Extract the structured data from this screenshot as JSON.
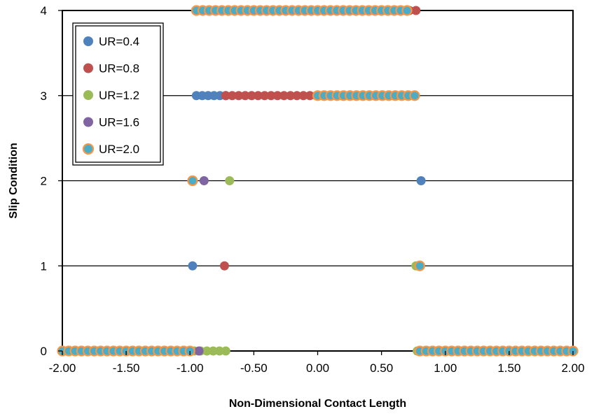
{
  "chart_data": {
    "type": "scatter",
    "xlabel": "Non-Dimensional Contact Length",
    "ylabel": "Slip Condition",
    "xlim": [
      -2.0,
      2.0
    ],
    "ylim": [
      0,
      4
    ],
    "xticks": [
      "-2.00",
      "-1.50",
      "-1.00",
      "-0.50",
      "0.00",
      "0.50",
      "1.00",
      "1.50",
      "2.00"
    ],
    "yticks": [
      "0",
      "1",
      "2",
      "3",
      "4"
    ],
    "grid": "horizontal",
    "legend_position": "top-left",
    "series": [
      {
        "name": "UR=0.4",
        "fill": "#4f81bd",
        "stroke": "#4f81bd",
        "points": [
          {
            "y": 0,
            "ranges": [
              [
                -2.0,
                -1.0
              ],
              [
                0.8,
                2.0
              ]
            ]
          },
          {
            "y": 1,
            "x": [
              -0.98
            ]
          },
          {
            "y": 2,
            "x": [
              0.81
            ]
          },
          {
            "y": 3,
            "ranges": [
              [
                -0.95,
                -0.72
              ]
            ]
          },
          {
            "y": 4,
            "ranges": [
              [
                -0.95,
                -0.05
              ]
            ]
          }
        ]
      },
      {
        "name": "UR=0.8",
        "fill": "#c0504d",
        "stroke": "#c0504d",
        "points": [
          {
            "y": 0,
            "ranges": [
              [
                -2.0,
                -1.0
              ],
              [
                0.8,
                2.0
              ]
            ]
          },
          {
            "y": 1,
            "x": [
              -0.73
            ]
          },
          {
            "y": 3,
            "ranges": [
              [
                -0.72,
                0.75
              ]
            ]
          },
          {
            "y": 4,
            "ranges": [
              [
                -0.05,
                0.77
              ]
            ]
          }
        ]
      },
      {
        "name": "UR=1.2",
        "fill": "#9bbb59",
        "stroke": "#9bbb59",
        "points": [
          {
            "y": 0,
            "ranges": [
              [
                -2.0,
                -0.72
              ],
              [
                0.78,
                2.0
              ]
            ]
          },
          {
            "y": 1,
            "x": [
              0.77
            ]
          },
          {
            "y": 2,
            "x": [
              -0.69
            ]
          },
          {
            "y": 3,
            "ranges": [
              [
                0.0,
                0.76
              ]
            ]
          },
          {
            "y": 4,
            "ranges": [
              [
                -0.95,
                0.68
              ]
            ]
          }
        ]
      },
      {
        "name": "UR=1.6",
        "fill": "#8064a2",
        "stroke": "#8064a2",
        "points": [
          {
            "y": 0,
            "x": [
              -0.93
            ]
          },
          {
            "y": 2,
            "x": [
              -0.89
            ]
          }
        ]
      },
      {
        "name": "UR=2.0",
        "fill": "#4bacc6",
        "stroke": "#f79646",
        "points": [
          {
            "y": 0,
            "ranges": [
              [
                -2.0,
                -1.0
              ],
              [
                0.8,
                2.0
              ]
            ]
          },
          {
            "y": 1,
            "x": [
              0.8
            ]
          },
          {
            "y": 2,
            "x": [
              -0.98
            ]
          },
          {
            "y": 3,
            "ranges": [
              [
                0.0,
                0.76
              ]
            ]
          },
          {
            "y": 4,
            "ranges": [
              [
                -0.95,
                0.7
              ]
            ]
          }
        ]
      }
    ]
  }
}
